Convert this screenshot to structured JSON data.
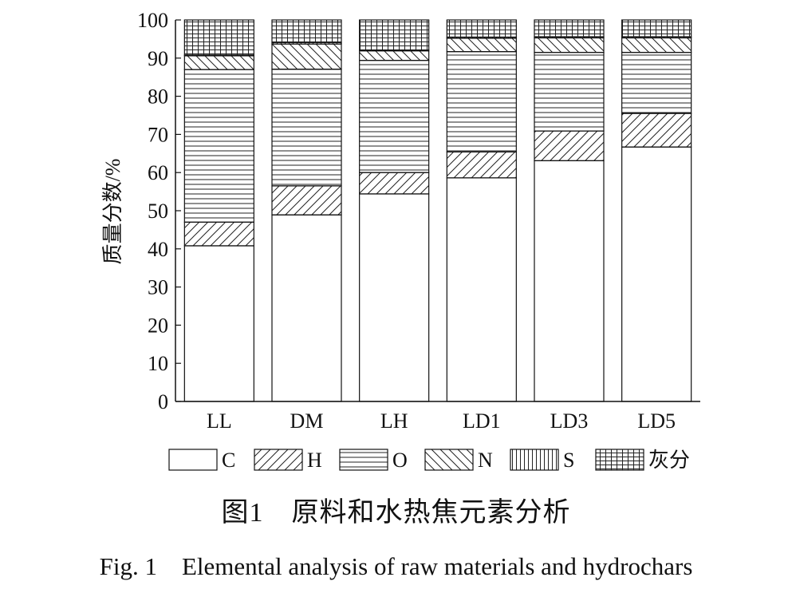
{
  "chart_data": {
    "type": "bar",
    "stacked": true,
    "categories": [
      "LL",
      "DM",
      "LH",
      "LD1",
      "LD3",
      "LD5"
    ],
    "series": [
      {
        "name": "C",
        "pattern": "blank",
        "values": [
          40.8,
          48.9,
          54.4,
          58.6,
          63.1,
          66.7
        ]
      },
      {
        "name": "H",
        "pattern": "diagonal",
        "values": [
          6.2,
          7.6,
          5.6,
          6.8,
          7.8,
          8.8
        ]
      },
      {
        "name": "O",
        "pattern": "horizontal",
        "values": [
          40.0,
          30.6,
          29.4,
          26.3,
          20.6,
          16.0
        ]
      },
      {
        "name": "N",
        "pattern": "backslash",
        "values": [
          3.6,
          6.6,
          2.5,
          3.5,
          3.8,
          3.8
        ]
      },
      {
        "name": "S",
        "pattern": "vertical",
        "values": [
          0.2,
          0.4,
          0.2,
          0.3,
          0.3,
          0.3
        ]
      },
      {
        "name": "灰分",
        "pattern": "grid",
        "values": [
          9.2,
          5.9,
          7.9,
          4.5,
          4.4,
          4.4
        ]
      }
    ],
    "ylabel": "质量分数/%",
    "xlabel": "",
    "ylim": [
      0,
      100
    ],
    "yticks": [
      0,
      10,
      20,
      30,
      40,
      50,
      60,
      70,
      80,
      90,
      100
    ],
    "grid": false,
    "legend_position": "bottom"
  },
  "caption": {
    "chinese": "图1　原料和水热焦元素分析",
    "english": "Fig. 1　Elemental analysis of raw materials and hydrochars"
  }
}
